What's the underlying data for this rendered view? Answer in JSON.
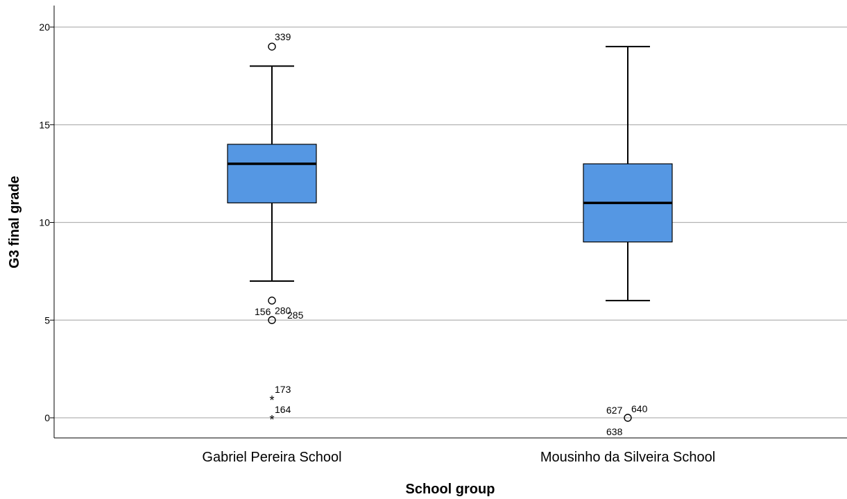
{
  "chart_data": {
    "type": "boxplot",
    "xlabel": "School group",
    "ylabel": "G3 final grade",
    "ylim": [
      -1.04,
      21
    ],
    "yticks": [
      0,
      5,
      10,
      15,
      20
    ],
    "grid": true,
    "categories": [
      "Gabriel Pereira School",
      "Mousinho da Silveira School"
    ],
    "box_color": "#5597e3",
    "boxes": [
      {
        "category": "Gabriel Pereira School",
        "whisker_low": 7,
        "q1": 11,
        "median": 13,
        "q3": 14,
        "whisker_high": 18,
        "outliers": [
          {
            "value": 19,
            "marker": "circle",
            "labels": [
              "339"
            ]
          },
          {
            "value": 6,
            "marker": "circle",
            "labels": [
              "156",
              "285"
            ]
          },
          {
            "value": 5,
            "marker": "circle",
            "labels": [
              "280"
            ]
          },
          {
            "value": 1,
            "marker": "star",
            "labels": [
              "173"
            ]
          },
          {
            "value": 0,
            "marker": "star",
            "labels": [
              "164"
            ]
          }
        ]
      },
      {
        "category": "Mousinho da Silveira School",
        "whisker_low": 6,
        "q1": 9,
        "median": 11,
        "q3": 13,
        "whisker_high": 19,
        "outliers": [
          {
            "value": 0,
            "marker": "circle",
            "labels": [
              "627",
              "640",
              "638"
            ]
          }
        ]
      }
    ]
  }
}
